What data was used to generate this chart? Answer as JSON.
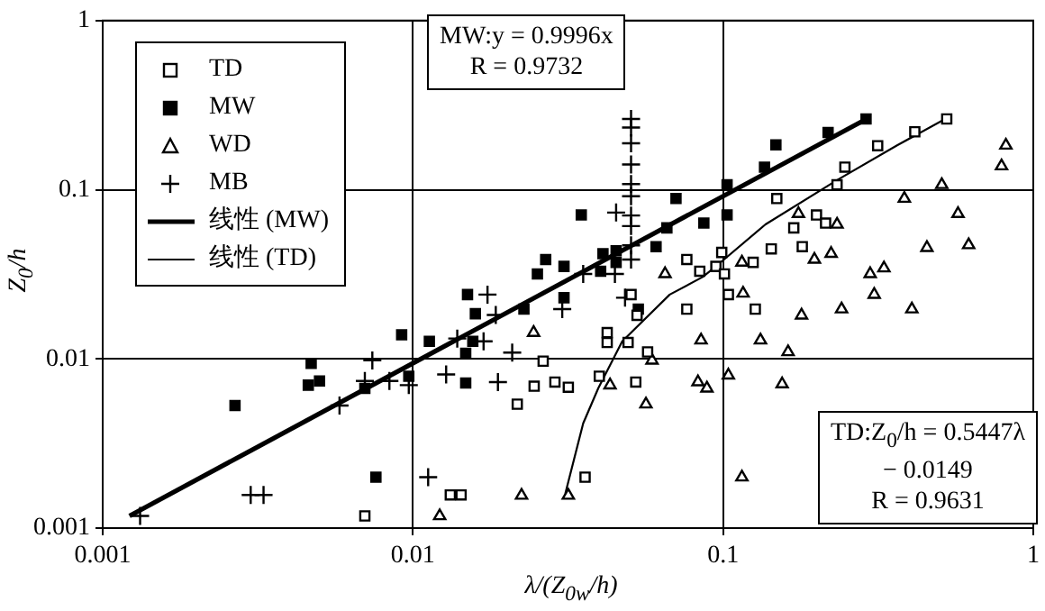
{
  "chart_data": {
    "type": "scatter",
    "xlabel": "λ/(Z$_{0w}$/h)",
    "ylabel": "Z$_{0}$/h",
    "log": "xy",
    "grid": true,
    "legend": "top left",
    "xlim": [
      0.001,
      1
    ],
    "ylim": [
      0.001,
      1
    ],
    "xticks": [
      0.001,
      0.01,
      0.1,
      1
    ],
    "yticks": [
      0.001,
      0.01,
      0.1,
      1
    ],
    "annotations": [
      "MW:y = 0.9996x\nR = 0.9732",
      "TD:Z$_{0}$/h = 0.5447λ\n− 0.0149\nR = 0.9631"
    ],
    "series": [
      {
        "name": "TD",
        "marker": "square",
        "color": "#000000",
        "x": [
          0.007,
          0.0132,
          0.0143,
          0.0217,
          0.0246,
          0.0263,
          0.0287,
          0.0317,
          0.0359,
          0.0399,
          0.0423,
          0.0423,
          0.0494,
          0.0505,
          0.0523,
          0.0528,
          0.0571,
          0.0764,
          0.0764,
          0.0841,
          0.0948,
          0.099,
          0.101,
          0.104,
          0.125,
          0.127,
          0.143,
          0.149,
          0.169,
          0.18,
          0.2,
          0.214,
          0.233,
          0.247,
          0.315,
          0.415,
          0.526
        ],
        "values": [
          0.00118,
          0.00157,
          0.00157,
          0.0054,
          0.0069,
          0.0097,
          0.0073,
          0.0068,
          0.002,
          0.0079,
          0.0143,
          0.0125,
          0.0125,
          0.024,
          0.0073,
          0.0181,
          0.011,
          0.0387,
          0.0197,
          0.033,
          0.0352,
          0.0426,
          0.0318,
          0.024,
          0.0372,
          0.0197,
          0.0447,
          0.0887,
          0.0595,
          0.0461,
          0.0709,
          0.0635,
          0.107,
          0.136,
          0.182,
          0.22,
          0.262
        ]
      },
      {
        "name": "MW",
        "marker": "square",
        "color": "#000000",
        "x": [
          0.00267,
          0.0047,
          0.0046,
          0.005,
          0.007,
          0.0076,
          0.0092,
          0.0097,
          0.0113,
          0.015,
          0.0159,
          0.0148,
          0.0148,
          0.0156,
          0.0228,
          0.0252,
          0.0268,
          0.0307,
          0.0307,
          0.0349,
          0.0403,
          0.041,
          0.0452,
          0.0452,
          0.0533,
          0.0608,
          0.0659,
          0.0705,
          0.0867,
          0.103,
          0.103,
          0.136,
          0.148,
          0.218,
          0.289
        ],
        "values": [
          0.0053,
          0.0094,
          0.007,
          0.0074,
          0.0067,
          0.002,
          0.0139,
          0.0079,
          0.0127,
          0.024,
          0.0185,
          0.0108,
          0.0072,
          0.0127,
          0.0197,
          0.0318,
          0.0387,
          0.0352,
          0.023,
          0.0709,
          0.033,
          0.0419,
          0.0436,
          0.0372,
          0.0197,
          0.0461,
          0.0595,
          0.0887,
          0.0635,
          0.0709,
          0.107,
          0.136,
          0.184,
          0.218,
          0.262
        ]
      },
      {
        "name": "WD",
        "marker": "triangle",
        "color": "#000000",
        "x": [
          0.0122,
          0.0224,
          0.0245,
          0.0317,
          0.0432,
          0.0564,
          0.059,
          0.065,
          0.083,
          0.0887,
          0.0849,
          0.104,
          0.116,
          0.115,
          0.115,
          0.132,
          0.155,
          0.162,
          0.175,
          0.179,
          0.197,
          0.223,
          0.233,
          0.241,
          0.298,
          0.307,
          0.33,
          0.384,
          0.406,
          0.454,
          0.507,
          0.572,
          0.619,
          0.79,
          0.816
        ],
        "values": [
          0.00118,
          0.00156,
          0.0143,
          0.00156,
          0.007,
          0.0054,
          0.0098,
          0.0318,
          0.0073,
          0.0067,
          0.0129,
          0.008,
          0.0244,
          0.0372,
          0.002,
          0.0129,
          0.0071,
          0.011,
          0.0721,
          0.0181,
          0.0387,
          0.0419,
          0.0624,
          0.0197,
          0.0318,
          0.024,
          0.0344,
          0.0887,
          0.0197,
          0.0454,
          0.107,
          0.0721,
          0.0472,
          0.138,
          0.183
        ]
      },
      {
        "name": "MB",
        "marker": "cross",
        "color": "#000000",
        "x": [
          0.00132,
          0.003,
          0.0033,
          0.0058,
          0.0074,
          0.007,
          0.0084,
          0.0097,
          0.0112,
          0.0128,
          0.0139,
          0.0169,
          0.0174,
          0.0185,
          0.0188,
          0.0209,
          0.0303,
          0.0354,
          0.0452,
          0.0448,
          0.0483,
          0.0505,
          0.0505,
          0.0505,
          0.0505,
          0.0505,
          0.0505,
          0.0505,
          0.0505,
          0.0505,
          0.0505
        ],
        "values": [
          0.00118,
          0.00157,
          0.00157,
          0.0053,
          0.0098,
          0.0074,
          0.0074,
          0.007,
          0.002,
          0.0081,
          0.0132,
          0.0127,
          0.024,
          0.0182,
          0.0073,
          0.0109,
          0.0197,
          0.0318,
          0.0733,
          0.0318,
          0.023,
          0.262,
          0.233,
          0.188,
          0.141,
          0.108,
          0.0916,
          0.0704,
          0.061,
          0.0469,
          0.0387
        ]
      },
      {
        "name": "线性 (MW)",
        "type": "line",
        "line_style": "solid",
        "color": "#000000",
        "x": [
          0.00122,
          0.29
        ],
        "values": [
          0.00118,
          0.262
        ]
      },
      {
        "name": "线性 (TD)",
        "type": "line",
        "line_style": "solid",
        "color": "#000000",
        "x": [
          0.031,
          0.0354,
          0.0396,
          0.0473,
          0.0673,
          0.0859,
          0.0958,
          0.137,
          0.233,
          0.364,
          0.52
        ],
        "values": [
          0.0016,
          0.00416,
          0.00671,
          0.0127,
          0.024,
          0.0305,
          0.0358,
          0.0624,
          0.114,
          0.183,
          0.262
        ]
      }
    ]
  }
}
